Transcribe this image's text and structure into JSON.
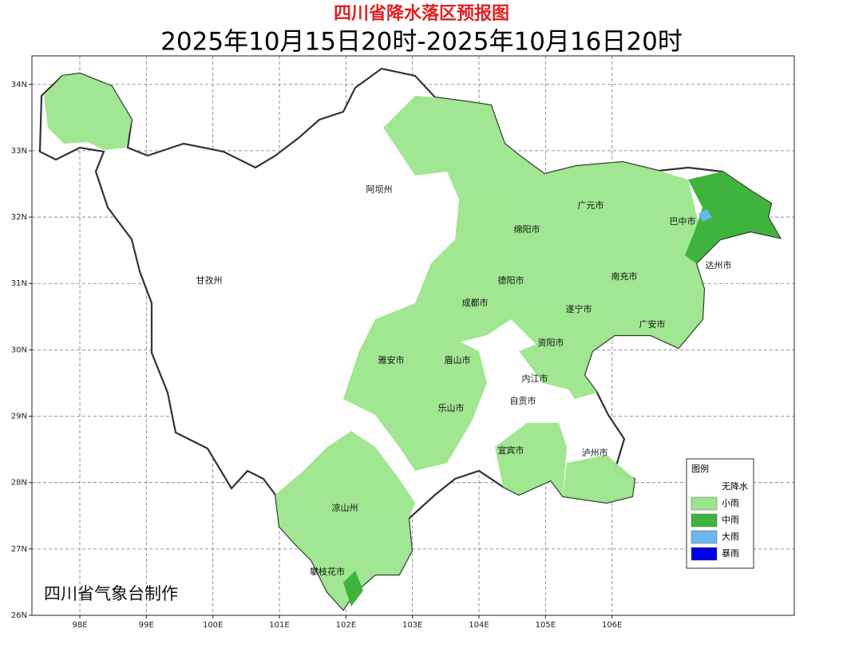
{
  "header": {
    "title": "四川省降水落区预报图",
    "subtitle": "2025年10月15日20时-2025年10月16日20时"
  },
  "map": {
    "xlim": [
      97.28,
      108.74
    ],
    "ylim": [
      26,
      34.43
    ],
    "xticks": [
      {
        "value": 98,
        "label": "98E"
      },
      {
        "value": 99,
        "label": "99E"
      },
      {
        "value": 100,
        "label": "100E"
      },
      {
        "value": 101,
        "label": "101E"
      },
      {
        "value": 102,
        "label": "102E"
      },
      {
        "value": 103,
        "label": "103E"
      },
      {
        "value": 104,
        "label": "104E"
      },
      {
        "value": 105,
        "label": "105E"
      },
      {
        "value": 106,
        "label": "106E"
      }
    ],
    "yticks": [
      {
        "value": 26,
        "label": "26N"
      },
      {
        "value": 27,
        "label": "27N"
      },
      {
        "value": 28,
        "label": "28N"
      },
      {
        "value": 29,
        "label": "29N"
      },
      {
        "value": 30,
        "label": "30N"
      },
      {
        "value": 31,
        "label": "31N"
      },
      {
        "value": 32,
        "label": "32N"
      },
      {
        "value": 33,
        "label": "33N"
      },
      {
        "value": 34,
        "label": "34N"
      }
    ],
    "grid": true,
    "labels": [
      "阿坝州",
      "甘孜州",
      "绵阳市",
      "广元市",
      "巴中市",
      "达州市",
      "南充市",
      "德阳市",
      "成都市",
      "遂宁市",
      "广安市",
      "资阳市",
      "雅安市",
      "眉山市",
      "内江市",
      "自贡市",
      "乐山市",
      "宜宾市",
      "泸州市",
      "凉山州",
      "攀枝花市"
    ],
    "legend": {
      "title": "图例",
      "items": [
        {
          "label": "无降水",
          "color": "#ffffff"
        },
        {
          "label": "小雨",
          "color": "#9ce58c"
        },
        {
          "label": "中雨",
          "color": "#3fb43c"
        },
        {
          "label": "大雨",
          "color": "#6ab8f0"
        },
        {
          "label": "暴雨",
          "color": "#0000e6"
        }
      ]
    },
    "credit": "四川省气象台制作"
  }
}
